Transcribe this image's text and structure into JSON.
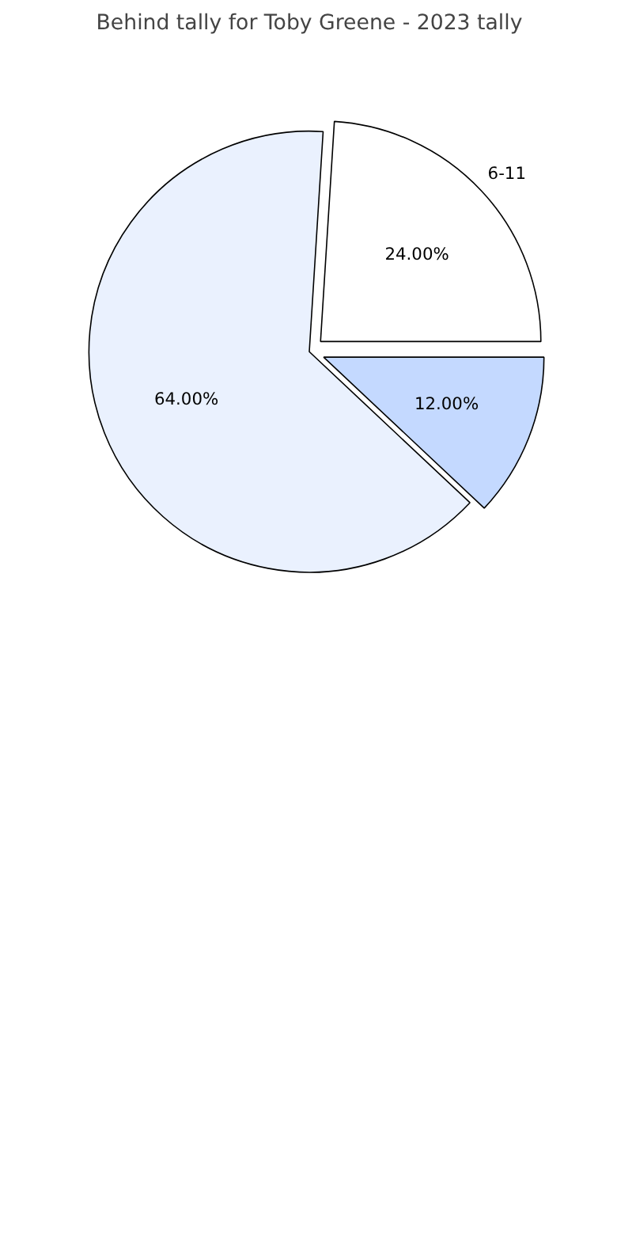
{
  "chart_data": {
    "type": "pie",
    "title": "Behind tally for Toby Greene - 2023 tally",
    "categories": [
      "6-11",
      null,
      null
    ],
    "values": [
      24,
      64,
      12
    ],
    "colors": [
      "#ffffff",
      "#eaf1fe",
      "#c4d9ff"
    ],
    "value_labels": [
      "24.00%",
      "64.00%",
      "12.00%"
    ]
  }
}
